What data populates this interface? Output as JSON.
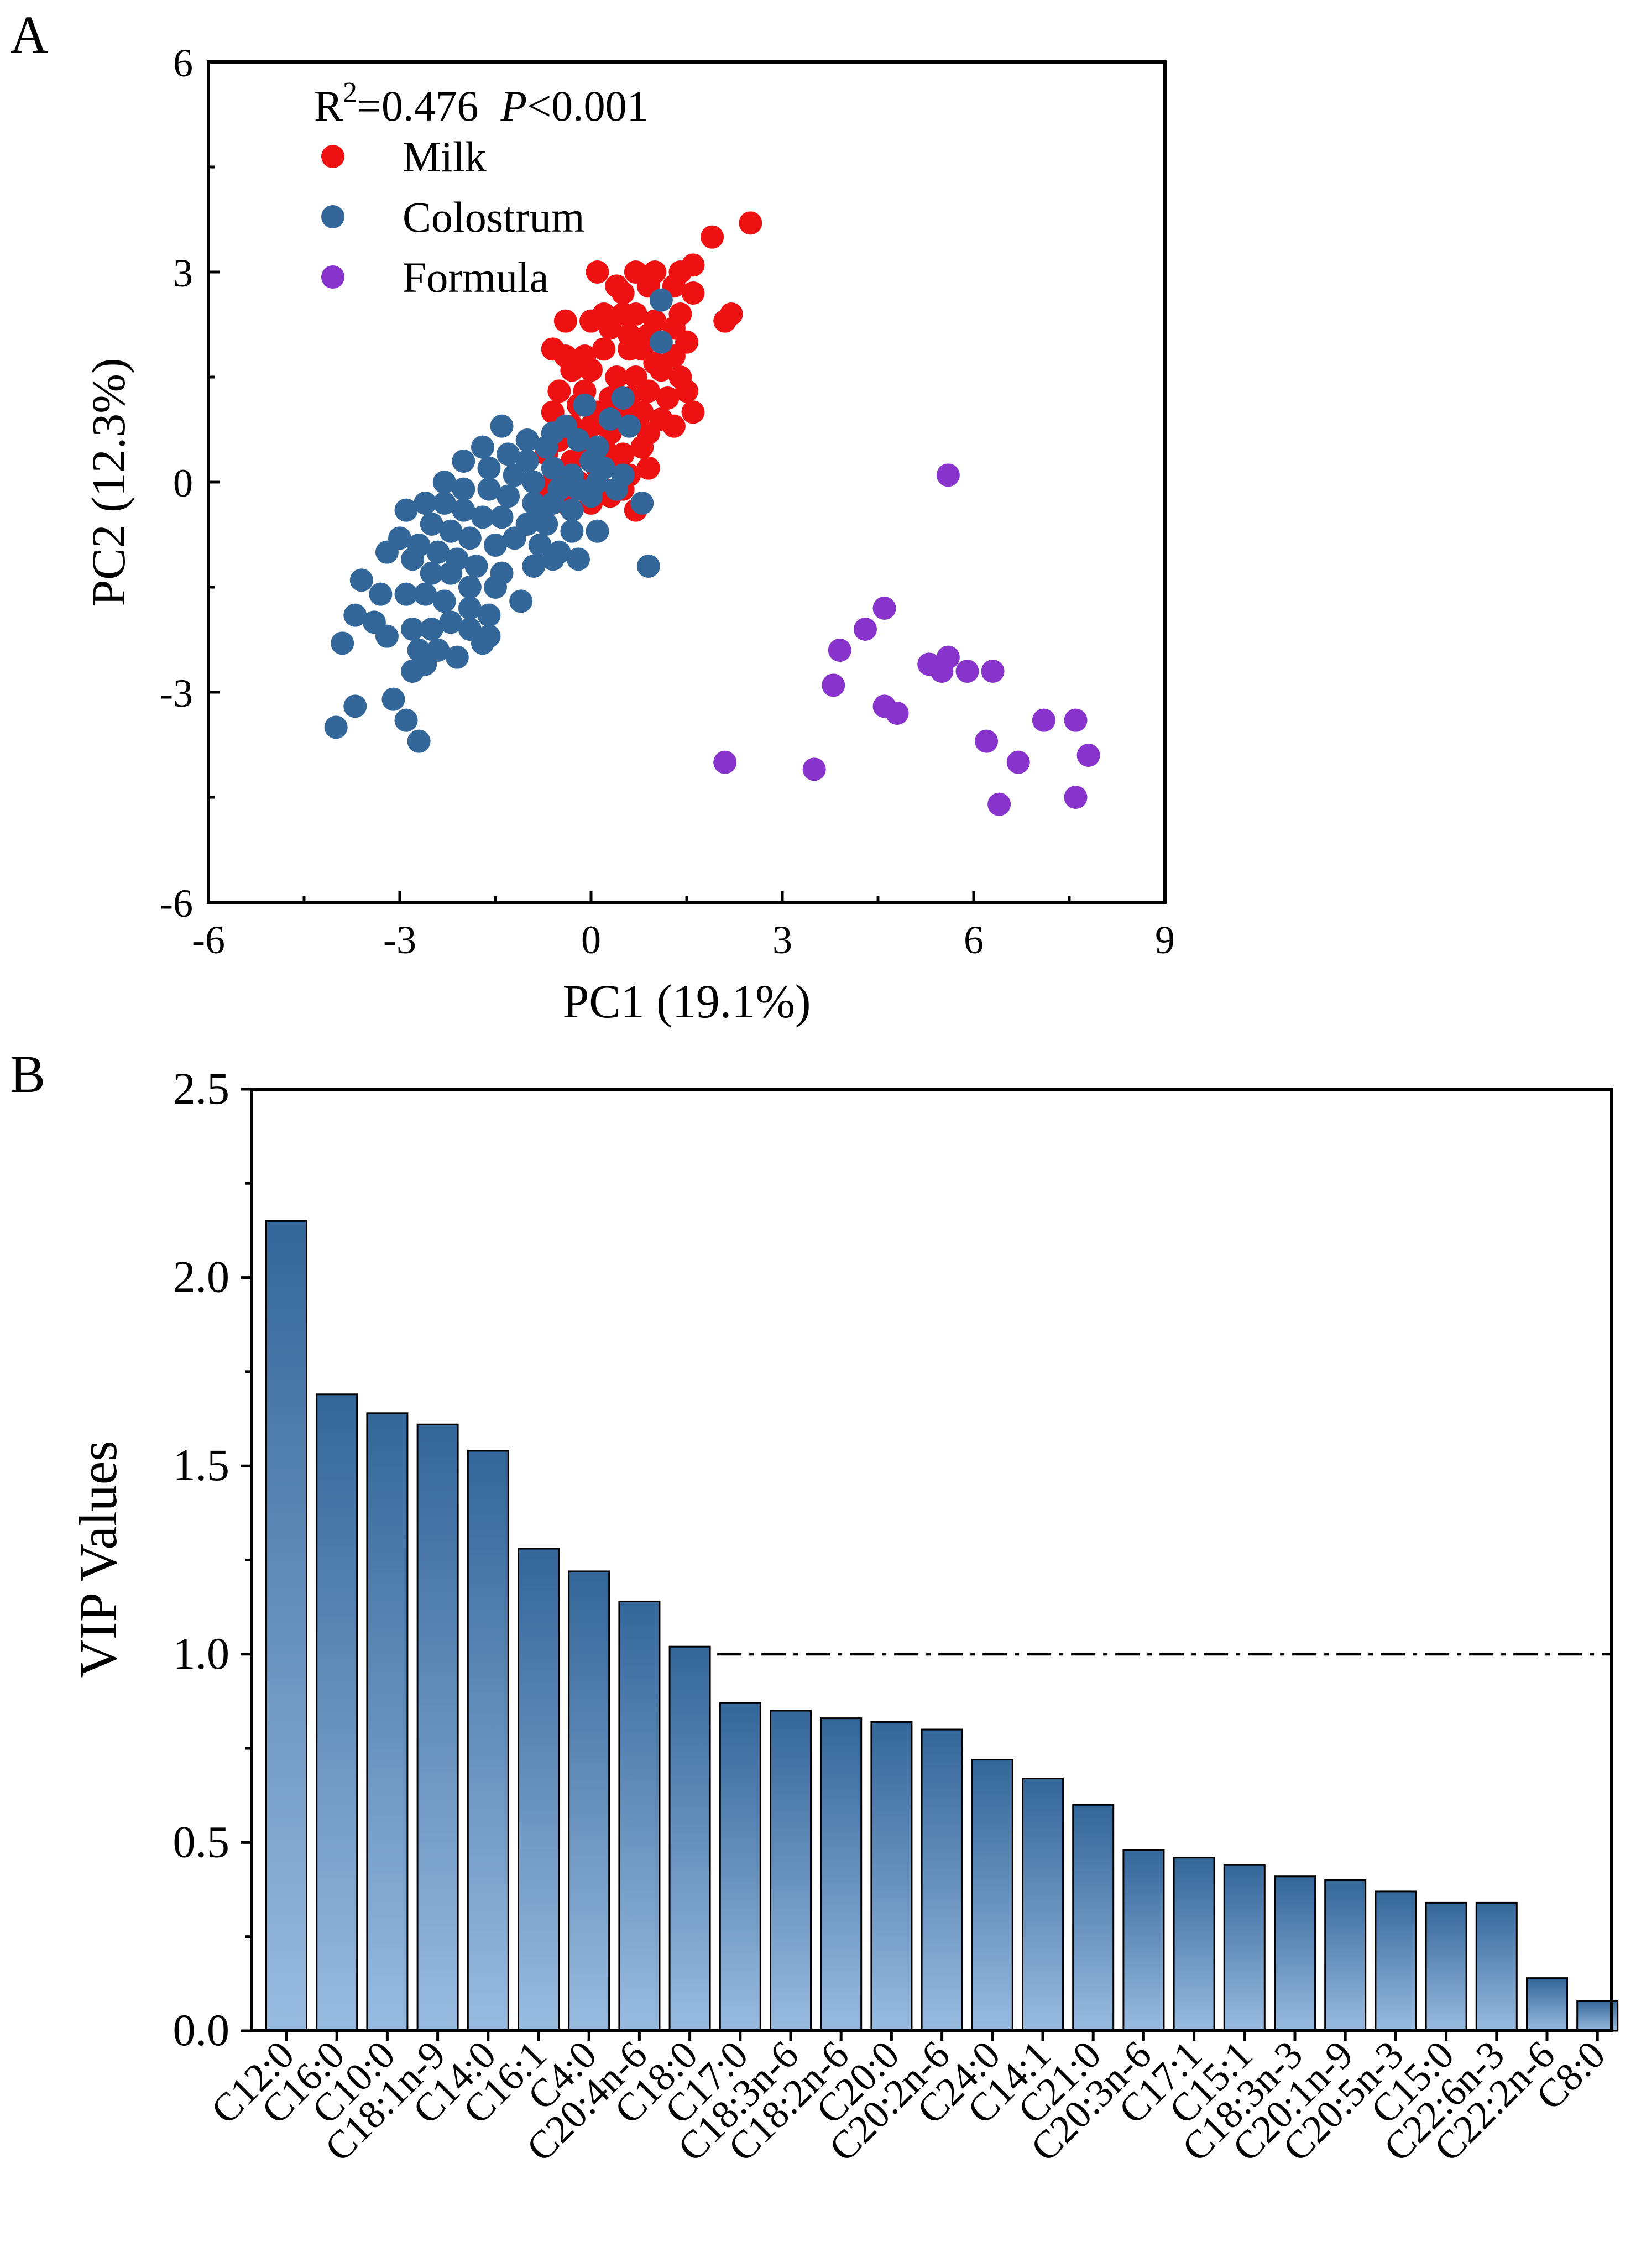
{
  "chart_data": [
    {
      "panel_label": "A",
      "type": "scatter",
      "title": "",
      "xlabel": "PC1 (19.1%)",
      "ylabel": "PC2 (12.3%)",
      "xlim": [
        -6,
        9
      ],
      "ylim": [
        -6,
        6
      ],
      "xticks": [
        -6,
        -3,
        0,
        3,
        6,
        9
      ],
      "yticks": [
        -6,
        -3,
        0,
        3,
        6
      ],
      "annotation": {
        "r_base": "R",
        "r_sup": "2",
        "r_value": "=0.476",
        "p_symbol": "P",
        "p_value": "<0.001"
      },
      "legend_position": "top-left",
      "series": [
        {
          "name": "Milk",
          "color": "#ee1111",
          "points": [
            [
              2.5,
              3.7
            ],
            [
              1.9,
              3.5
            ],
            [
              0.7,
              3.0
            ],
            [
              1.0,
              3.0
            ],
            [
              1.4,
              3.0
            ],
            [
              1.6,
              3.1
            ],
            [
              0.1,
              3.0
            ],
            [
              0.4,
              2.8
            ],
            [
              0.9,
              2.8
            ],
            [
              1.3,
              2.8
            ],
            [
              1.6,
              2.7
            ],
            [
              2.2,
              2.4
            ],
            [
              2.1,
              2.3
            ],
            [
              0.2,
              2.4
            ],
            [
              0.5,
              2.4
            ],
            [
              0.7,
              2.4
            ],
            [
              1.0,
              2.3
            ],
            [
              1.4,
              2.4
            ],
            [
              0.0,
              2.3
            ],
            [
              0.3,
              2.2
            ],
            [
              0.6,
              2.1
            ],
            [
              0.9,
              2.1
            ],
            [
              1.3,
              2.2
            ],
            [
              1.5,
              2.0
            ],
            [
              -0.6,
              1.9
            ],
            [
              -0.4,
              1.8
            ],
            [
              -0.1,
              1.8
            ],
            [
              0.2,
              1.9
            ],
            [
              0.6,
              1.9
            ],
            [
              1.0,
              1.7
            ],
            [
              1.3,
              1.8
            ],
            [
              -0.3,
              1.6
            ],
            [
              0.0,
              1.6
            ],
            [
              0.4,
              1.5
            ],
            [
              0.7,
              1.5
            ],
            [
              1.1,
              1.6
            ],
            [
              1.4,
              1.5
            ],
            [
              -0.5,
              1.3
            ],
            [
              -0.1,
              1.3
            ],
            [
              0.3,
              1.2
            ],
            [
              0.6,
              1.2
            ],
            [
              0.9,
              1.3
            ],
            [
              1.2,
              1.2
            ],
            [
              -0.6,
              1.0
            ],
            [
              -0.2,
              1.1
            ],
            [
              0.1,
              1.0
            ],
            [
              0.5,
              1.0
            ],
            [
              0.8,
              1.0
            ],
            [
              1.1,
              0.9
            ],
            [
              1.6,
              1.0
            ],
            [
              -0.3,
              0.8
            ],
            [
              0.0,
              0.8
            ],
            [
              0.3,
              0.7
            ],
            [
              0.6,
              0.8
            ],
            [
              0.9,
              0.7
            ],
            [
              1.3,
              0.8
            ],
            [
              -0.5,
              0.6
            ],
            [
              -0.1,
              0.5
            ],
            [
              0.2,
              0.5
            ],
            [
              0.5,
              0.4
            ],
            [
              0.8,
              0.5
            ],
            [
              -0.7,
              0.4
            ],
            [
              -0.3,
              0.3
            ],
            [
              0.1,
              0.2
            ],
            [
              0.4,
              0.3
            ],
            [
              0.6,
              0.1
            ],
            [
              0.9,
              0.2
            ],
            [
              -0.6,
              0.0
            ],
            [
              -0.2,
              0.0
            ],
            [
              0.2,
              -0.1
            ],
            [
              0.5,
              -0.1
            ],
            [
              -0.8,
              -0.2
            ],
            [
              -0.4,
              -0.3
            ],
            [
              0.0,
              -0.3
            ],
            [
              0.3,
              -0.2
            ],
            [
              0.7,
              -0.4
            ],
            [
              0.5,
              2.7
            ],
            [
              1.5,
              1.3
            ],
            [
              0.8,
              1.9
            ],
            [
              -0.4,
              2.3
            ]
          ]
        },
        {
          "name": "Colostrum",
          "color": "#336699",
          "points": [
            [
              1.1,
              2.6
            ],
            [
              1.1,
              2.0
            ],
            [
              0.5,
              1.2
            ],
            [
              -0.1,
              1.1
            ],
            [
              0.3,
              0.9
            ],
            [
              0.6,
              0.8
            ],
            [
              -0.4,
              0.8
            ],
            [
              -0.6,
              0.7
            ],
            [
              -1.4,
              0.8
            ],
            [
              -1.0,
              0.6
            ],
            [
              -0.7,
              0.5
            ],
            [
              -0.2,
              0.6
            ],
            [
              0.1,
              0.5
            ],
            [
              -1.7,
              0.5
            ],
            [
              -1.3,
              0.4
            ],
            [
              -1.0,
              0.3
            ],
            [
              -0.6,
              0.2
            ],
            [
              -0.3,
              0.1
            ],
            [
              0.0,
              0.3
            ],
            [
              0.2,
              0.2
            ],
            [
              0.5,
              0.1
            ],
            [
              -2.0,
              0.3
            ],
            [
              -1.6,
              0.2
            ],
            [
              -1.2,
              0.1
            ],
            [
              -0.9,
              0.0
            ],
            [
              -0.5,
              -0.1
            ],
            [
              -0.2,
              -0.1
            ],
            [
              0.1,
              0.0
            ],
            [
              0.4,
              -0.1
            ],
            [
              -2.3,
              0.0
            ],
            [
              -2.0,
              -0.1
            ],
            [
              -1.6,
              -0.1
            ],
            [
              -1.3,
              -0.2
            ],
            [
              -0.9,
              -0.3
            ],
            [
              -0.6,
              -0.3
            ],
            [
              -0.3,
              -0.4
            ],
            [
              0.0,
              -0.2
            ],
            [
              0.8,
              -0.3
            ],
            [
              -2.6,
              -0.3
            ],
            [
              -2.3,
              -0.3
            ],
            [
              -2.0,
              -0.4
            ],
            [
              -1.7,
              -0.5
            ],
            [
              -1.4,
              -0.5
            ],
            [
              -1.0,
              -0.6
            ],
            [
              -0.7,
              -0.6
            ],
            [
              -0.3,
              -0.7
            ],
            [
              0.1,
              -0.7
            ],
            [
              -2.9,
              -0.4
            ],
            [
              -2.5,
              -0.6
            ],
            [
              -2.2,
              -0.7
            ],
            [
              -1.9,
              -0.8
            ],
            [
              -1.5,
              -0.9
            ],
            [
              -1.2,
              -0.8
            ],
            [
              -0.8,
              -0.9
            ],
            [
              -0.5,
              -1.0
            ],
            [
              -3.0,
              -0.8
            ],
            [
              -2.7,
              -0.9
            ],
            [
              -2.4,
              -1.0
            ],
            [
              -2.1,
              -1.1
            ],
            [
              -1.8,
              -1.2
            ],
            [
              -1.4,
              -1.3
            ],
            [
              -0.9,
              -1.2
            ],
            [
              -3.2,
              -1.0
            ],
            [
              -2.8,
              -1.1
            ],
            [
              -2.5,
              -1.3
            ],
            [
              -2.2,
              -1.3
            ],
            [
              -1.9,
              -1.5
            ],
            [
              -1.5,
              -1.5
            ],
            [
              -1.1,
              -1.7
            ],
            [
              -0.6,
              -1.1
            ],
            [
              -0.2,
              -1.1
            ],
            [
              -2.9,
              -1.6
            ],
            [
              -2.6,
              -1.6
            ],
            [
              -2.3,
              -1.7
            ],
            [
              -1.9,
              -1.8
            ],
            [
              -1.6,
              -1.9
            ],
            [
              -3.6,
              -1.4
            ],
            [
              -3.3,
              -1.6
            ],
            [
              -3.7,
              -1.9
            ],
            [
              -3.4,
              -2.0
            ],
            [
              -3.2,
              -2.2
            ],
            [
              -2.8,
              -2.1
            ],
            [
              -2.5,
              -2.1
            ],
            [
              -2.2,
              -2.0
            ],
            [
              -1.9,
              -2.1
            ],
            [
              -1.6,
              -2.2
            ],
            [
              -3.9,
              -2.3
            ],
            [
              -2.7,
              -2.4
            ],
            [
              -2.4,
              -2.4
            ],
            [
              -2.1,
              -2.5
            ],
            [
              -1.7,
              -2.3
            ],
            [
              -2.6,
              -2.6
            ],
            [
              -2.8,
              -2.7
            ],
            [
              -3.7,
              -3.2
            ],
            [
              -3.1,
              -3.1
            ],
            [
              -2.9,
              -3.4
            ],
            [
              -4.0,
              -3.5
            ],
            [
              -2.7,
              -3.7
            ],
            [
              0.9,
              -1.2
            ],
            [
              -0.8,
              -0.4
            ]
          ]
        },
        {
          "name": "Formula",
          "color": "#8833cc",
          "points": [
            [
              5.6,
              0.1
            ],
            [
              4.6,
              -1.8
            ],
            [
              4.3,
              -2.1
            ],
            [
              3.9,
              -2.4
            ],
            [
              5.6,
              -2.5
            ],
            [
              5.3,
              -2.6
            ],
            [
              5.5,
              -2.7
            ],
            [
              5.9,
              -2.7
            ],
            [
              6.3,
              -2.7
            ],
            [
              3.8,
              -2.9
            ],
            [
              4.6,
              -3.2
            ],
            [
              4.8,
              -3.3
            ],
            [
              7.1,
              -3.4
            ],
            [
              7.6,
              -3.4
            ],
            [
              6.2,
              -3.7
            ],
            [
              7.8,
              -3.9
            ],
            [
              2.1,
              -4.0
            ],
            [
              6.7,
              -4.0
            ],
            [
              3.5,
              -4.1
            ],
            [
              7.6,
              -4.5
            ],
            [
              6.4,
              -4.6
            ]
          ]
        }
      ]
    },
    {
      "panel_label": "B",
      "type": "bar",
      "title": "",
      "xlabel": "",
      "ylabel": "VIP Values",
      "ylim": [
        0,
        2.5
      ],
      "yticks": [
        0.0,
        0.5,
        1.0,
        1.5,
        2.0,
        2.5
      ],
      "ytick_labels": [
        "0.0",
        "0.5",
        "1.0",
        "1.5",
        "2.0",
        "2.5"
      ],
      "threshold": 1.0,
      "bar_color_top": "#336699",
      "bar_color_bottom": "#99bbe0",
      "categories": [
        "C12:0",
        "C16:0",
        "C10:0",
        "C18:1n-9",
        "C14:0",
        "C16:1",
        "C4:0",
        "C20:4n-6",
        "C18:0",
        "C17:0",
        "C18:3n-6",
        "C18:2n-6",
        "C20:0",
        "C20:2n-6",
        "C24:0",
        "C14:1",
        "C21:0",
        "C20:3n-6",
        "C17:1",
        "C15:1",
        "C18:3n-3",
        "C20:1n-9",
        "C20:5n-3",
        "C15:0",
        "C22:6n-3",
        "C22:2n-6",
        "C8:0"
      ],
      "values": [
        2.15,
        1.69,
        1.64,
        1.61,
        1.54,
        1.28,
        1.22,
        1.14,
        1.02,
        0.87,
        0.85,
        0.83,
        0.82,
        0.8,
        0.72,
        0.67,
        0.6,
        0.48,
        0.46,
        0.44,
        0.41,
        0.4,
        0.37,
        0.34,
        0.34,
        0.14,
        0.08
      ]
    }
  ]
}
